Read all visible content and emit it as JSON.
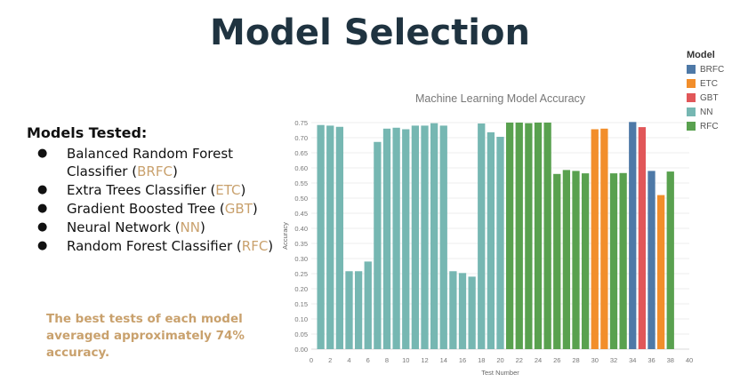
{
  "page": {
    "title": "Model Selection",
    "models_heading": "Models Tested:",
    "models": [
      {
        "name": "Balanced Random Forest Classifier (",
        "abbr": "BRFC",
        "close": ")"
      },
      {
        "name": "Extra Trees Classifier (",
        "abbr": "ETC",
        "close": ")"
      },
      {
        "name": "Gradient Boosted Tree (",
        "abbr": "GBT",
        "close": ")"
      },
      {
        "name": "Neural Network (",
        "abbr": "NN",
        "close": ")"
      },
      {
        "name": "Random Forest Classifier  (",
        "abbr": "RFC",
        "close": ")"
      }
    ],
    "summary": "The best tests of each model averaged approximately 74% accuracy."
  },
  "chart_data": {
    "type": "bar",
    "title": "Machine Learning Model Accuracy",
    "xlabel": "Test Number",
    "ylabel": "Accuracy",
    "xlim": [
      0,
      40
    ],
    "ylim": [
      0,
      0.75
    ],
    "xticks": [
      0,
      2,
      4,
      6,
      8,
      10,
      12,
      14,
      16,
      18,
      20,
      22,
      24,
      26,
      28,
      30,
      32,
      34,
      36,
      38,
      40
    ],
    "yticks": [
      0.0,
      0.05,
      0.1,
      0.15,
      0.2,
      0.25,
      0.3,
      0.35,
      0.4,
      0.45,
      0.5,
      0.55,
      0.6,
      0.65,
      0.7,
      0.75
    ],
    "grid": true,
    "legend_title": "Model",
    "legend_position": "top-right",
    "series": [
      {
        "name": "BRFC",
        "color": "#4e79a7",
        "points": [
          [
            34,
            0.752
          ],
          [
            36,
            0.59
          ]
        ]
      },
      {
        "name": "ETC",
        "color": "#f28e2b",
        "points": [
          [
            30,
            0.728
          ],
          [
            31,
            0.73
          ],
          [
            37,
            0.51
          ]
        ]
      },
      {
        "name": "GBT",
        "color": "#e15759",
        "points": [
          [
            35,
            0.735
          ]
        ]
      },
      {
        "name": "NN",
        "color": "#76b7b2",
        "points": [
          [
            1,
            0.742
          ],
          [
            2,
            0.74
          ],
          [
            3,
            0.736
          ],
          [
            4,
            0.258
          ],
          [
            5,
            0.258
          ],
          [
            6,
            0.29
          ],
          [
            7,
            0.686
          ],
          [
            8,
            0.73
          ],
          [
            9,
            0.733
          ],
          [
            10,
            0.728
          ],
          [
            11,
            0.74
          ],
          [
            12,
            0.74
          ],
          [
            13,
            0.748
          ],
          [
            14,
            0.74
          ],
          [
            15,
            0.258
          ],
          [
            16,
            0.252
          ],
          [
            17,
            0.24
          ],
          [
            18,
            0.747
          ],
          [
            19,
            0.718
          ],
          [
            20,
            0.703
          ]
        ]
      },
      {
        "name": "RFC",
        "color": "#59a14f",
        "points": [
          [
            21,
            0.75
          ],
          [
            22,
            0.75
          ],
          [
            23,
            0.748
          ],
          [
            24,
            0.75
          ],
          [
            25,
            0.75
          ],
          [
            26,
            0.58
          ],
          [
            27,
            0.593
          ],
          [
            28,
            0.59
          ],
          [
            29,
            0.582
          ],
          [
            32,
            0.582
          ],
          [
            33,
            0.583
          ],
          [
            38,
            0.588
          ]
        ]
      }
    ]
  }
}
